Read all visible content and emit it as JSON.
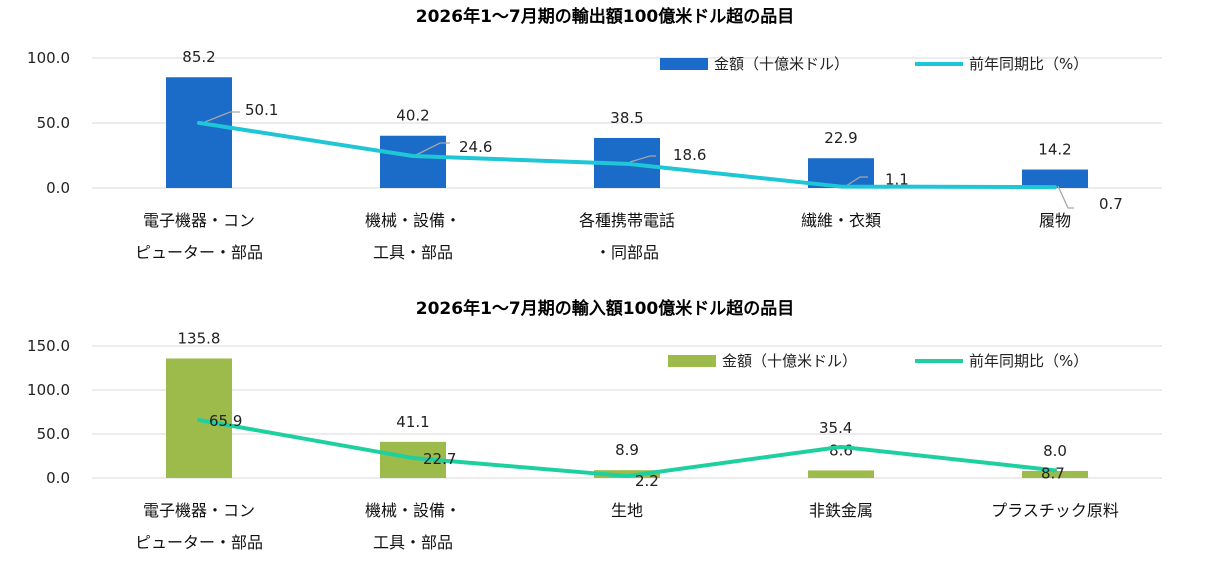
{
  "chart_data": [
    {
      "type": "bar",
      "title": "2026年1〜7月期の輸出額100億米ドル超の品目",
      "categories": [
        [
          "電子機器・コン",
          "ピューター・部品"
        ],
        [
          "機械・設備・",
          "工具・部品"
        ],
        [
          "各種携帯電話",
          "・同部品"
        ],
        [
          "繊維・衣類"
        ],
        [
          "履物"
        ]
      ],
      "series": [
        {
          "name": "金額（十億米ドル）",
          "type": "bar",
          "color": "#1a6cc8",
          "values": [
            85.2,
            40.2,
            38.5,
            22.9,
            14.2
          ],
          "labels": [
            "85.2",
            "40.2",
            "38.5",
            "22.9",
            "14.2"
          ]
        },
        {
          "name": "前年同期比（%）",
          "type": "line",
          "color": "#1ec6d6",
          "values": [
            50.1,
            24.6,
            18.6,
            1.1,
            0.7
          ],
          "labels": [
            "50.1",
            "24.6",
            "18.6",
            "1.1",
            "0.7"
          ]
        }
      ],
      "yticks": [
        "100.0",
        "50.0",
        "0.0"
      ],
      "ylim": [
        0,
        100
      ],
      "grid": true,
      "legend": "top-right"
    },
    {
      "type": "bar",
      "title": "2026年1〜7月期の輸入額100億米ドル超の品目",
      "categories": [
        [
          "電子機器・コン",
          "ピューター・部品"
        ],
        [
          "機械・設備・",
          "工具・部品"
        ],
        [
          "生地"
        ],
        [
          "非鉄金属"
        ],
        [
          "プラスチック原料"
        ]
      ],
      "series": [
        {
          "name": "金額（十億米ドル）",
          "type": "bar",
          "color": "#9dbb4a",
          "values": [
            135.8,
            41.1,
            8.9,
            8.6,
            8.0
          ],
          "labels": [
            "135.8",
            "41.1",
            "8.9",
            "8.6",
            "8.0"
          ]
        },
        {
          "name": "前年同期比（%）",
          "type": "line",
          "color": "#1ecfa0",
          "values": [
            65.9,
            22.7,
            2.2,
            35.4,
            8.7
          ],
          "labels": [
            "65.9",
            "22.7",
            "2.2",
            "35.4",
            "8.7"
          ]
        }
      ],
      "yticks": [
        "150.0",
        "100.0",
        "50.0",
        "0.0"
      ],
      "ylim": [
        0,
        150
      ],
      "grid": true,
      "legend": "top-right"
    }
  ]
}
